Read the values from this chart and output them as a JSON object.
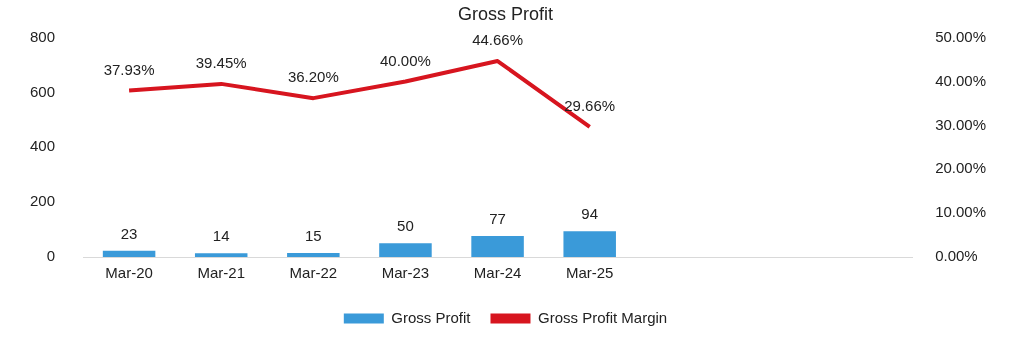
{
  "chart_data": {
    "type": "bar",
    "title": "Gross Profit",
    "categories": [
      "Mar-20",
      "Mar-21",
      "Mar-22",
      "Mar-23",
      "Mar-24",
      "Mar-25",
      null,
      null,
      null
    ],
    "series": [
      {
        "name": "Gross Profit",
        "color": "#3a9ad9",
        "values": [
          23,
          14,
          15,
          50,
          77,
          94,
          null,
          null,
          null
        ]
      },
      {
        "name": "Gross Profit Margin",
        "type": "line",
        "axis": "y2",
        "color": "#d7151f",
        "values": [
          37.93,
          39.45,
          36.2,
          40.0,
          44.66,
          29.66,
          null,
          null,
          null
        ]
      }
    ],
    "ylim": [
      0,
      800
    ],
    "yticks": [
      0,
      200,
      400,
      600,
      800
    ],
    "y2lim": [
      0,
      50
    ],
    "y2ticks": [
      {
        "value": 0,
        "label": "0.00%"
      },
      {
        "value": 10,
        "label": "10.00%"
      },
      {
        "value": 20,
        "label": "20.00%"
      },
      {
        "value": 30,
        "label": "30.00%"
      },
      {
        "value": 40,
        "label": "40.00%"
      },
      {
        "value": 50,
        "label": "50.00%"
      }
    ],
    "value_labels": [
      [
        "23",
        "14",
        "15",
        "50",
        "77",
        "94",
        null,
        null,
        null
      ],
      [
        "37.93%",
        "39.45%",
        "36.20%",
        "40.00%",
        "44.66%",
        "29.66%",
        null,
        null,
        null
      ]
    ],
    "grid": false,
    "legend": "bottom"
  }
}
